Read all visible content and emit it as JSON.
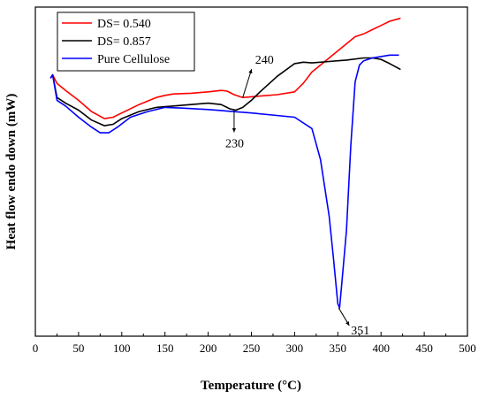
{
  "chart_data": {
    "type": "line",
    "title": "",
    "xlabel": "Temperature (°C)",
    "ylabel": "Heat flow endo down (mW)",
    "xlim": [
      0,
      500
    ],
    "xticks": [
      0,
      50,
      100,
      150,
      200,
      250,
      300,
      350,
      400,
      450,
      500
    ],
    "yticks_shown": false,
    "grid": false,
    "legend_position": "top-left",
    "series": [
      {
        "name": "DS= 0.540",
        "color": "#ff0000",
        "x": [
          18,
          20,
          25,
          35,
          50,
          65,
          80,
          90,
          100,
          120,
          140,
          150,
          160,
          180,
          200,
          215,
          222,
          230,
          240,
          250,
          260,
          280,
          300,
          310,
          320,
          340,
          350,
          360,
          370,
          380,
          390,
          400,
          410,
          422
        ],
        "y": [
          0.88,
          0.9,
          0.84,
          0.79,
          0.72,
          0.64,
          0.59,
          0.6,
          0.63,
          0.69,
          0.74,
          0.755,
          0.765,
          0.77,
          0.78,
          0.79,
          0.785,
          0.76,
          0.74,
          0.745,
          0.75,
          0.76,
          0.78,
          0.84,
          0.92,
          1.02,
          1.07,
          1.12,
          1.17,
          1.19,
          1.22,
          1.25,
          1.28,
          1.3
        ]
      },
      {
        "name": "DS= 0.857",
        "color": "#000000",
        "x": [
          18,
          20,
          25,
          35,
          50,
          65,
          80,
          90,
          100,
          120,
          140,
          150,
          160,
          180,
          200,
          215,
          225,
          232,
          240,
          250,
          260,
          280,
          300,
          310,
          320,
          340,
          360,
          380,
          390,
          400,
          410,
          422
        ],
        "y": [
          0.88,
          0.9,
          0.74,
          0.7,
          0.65,
          0.58,
          0.54,
          0.55,
          0.59,
          0.64,
          0.67,
          0.675,
          0.68,
          0.69,
          0.7,
          0.69,
          0.66,
          0.65,
          0.67,
          0.72,
          0.78,
          0.89,
          0.98,
          0.99,
          0.985,
          0.995,
          1.005,
          1.02,
          1.02,
          1.01,
          0.98,
          0.94
        ]
      },
      {
        "name": "Pure Cellulose",
        "color": "#0000ff",
        "x": [
          18,
          20,
          25,
          35,
          50,
          65,
          75,
          85,
          95,
          110,
          130,
          150,
          170,
          200,
          250,
          300,
          320,
          330,
          340,
          345,
          350,
          352,
          355,
          360,
          365,
          370,
          375,
          380,
          390,
          400,
          410,
          420
        ],
        "y": [
          0.88,
          0.9,
          0.72,
          0.68,
          0.6,
          0.53,
          0.49,
          0.49,
          0.53,
          0.6,
          0.64,
          0.67,
          0.665,
          0.655,
          0.63,
          0.6,
          0.52,
          0.3,
          -0.1,
          -0.4,
          -0.72,
          -0.75,
          -0.55,
          -0.2,
          0.4,
          0.85,
          0.97,
          1.0,
          1.02,
          1.03,
          1.04,
          1.04
        ]
      }
    ],
    "annotations": [
      {
        "text": "240",
        "x": 240,
        "y": 0.74,
        "color": "#ff0000"
      },
      {
        "text": "230",
        "x": 230,
        "y": 0.65,
        "color": "#000000"
      },
      {
        "text": "351",
        "x": 351,
        "y": -0.75,
        "color": "#0000ff"
      }
    ]
  }
}
